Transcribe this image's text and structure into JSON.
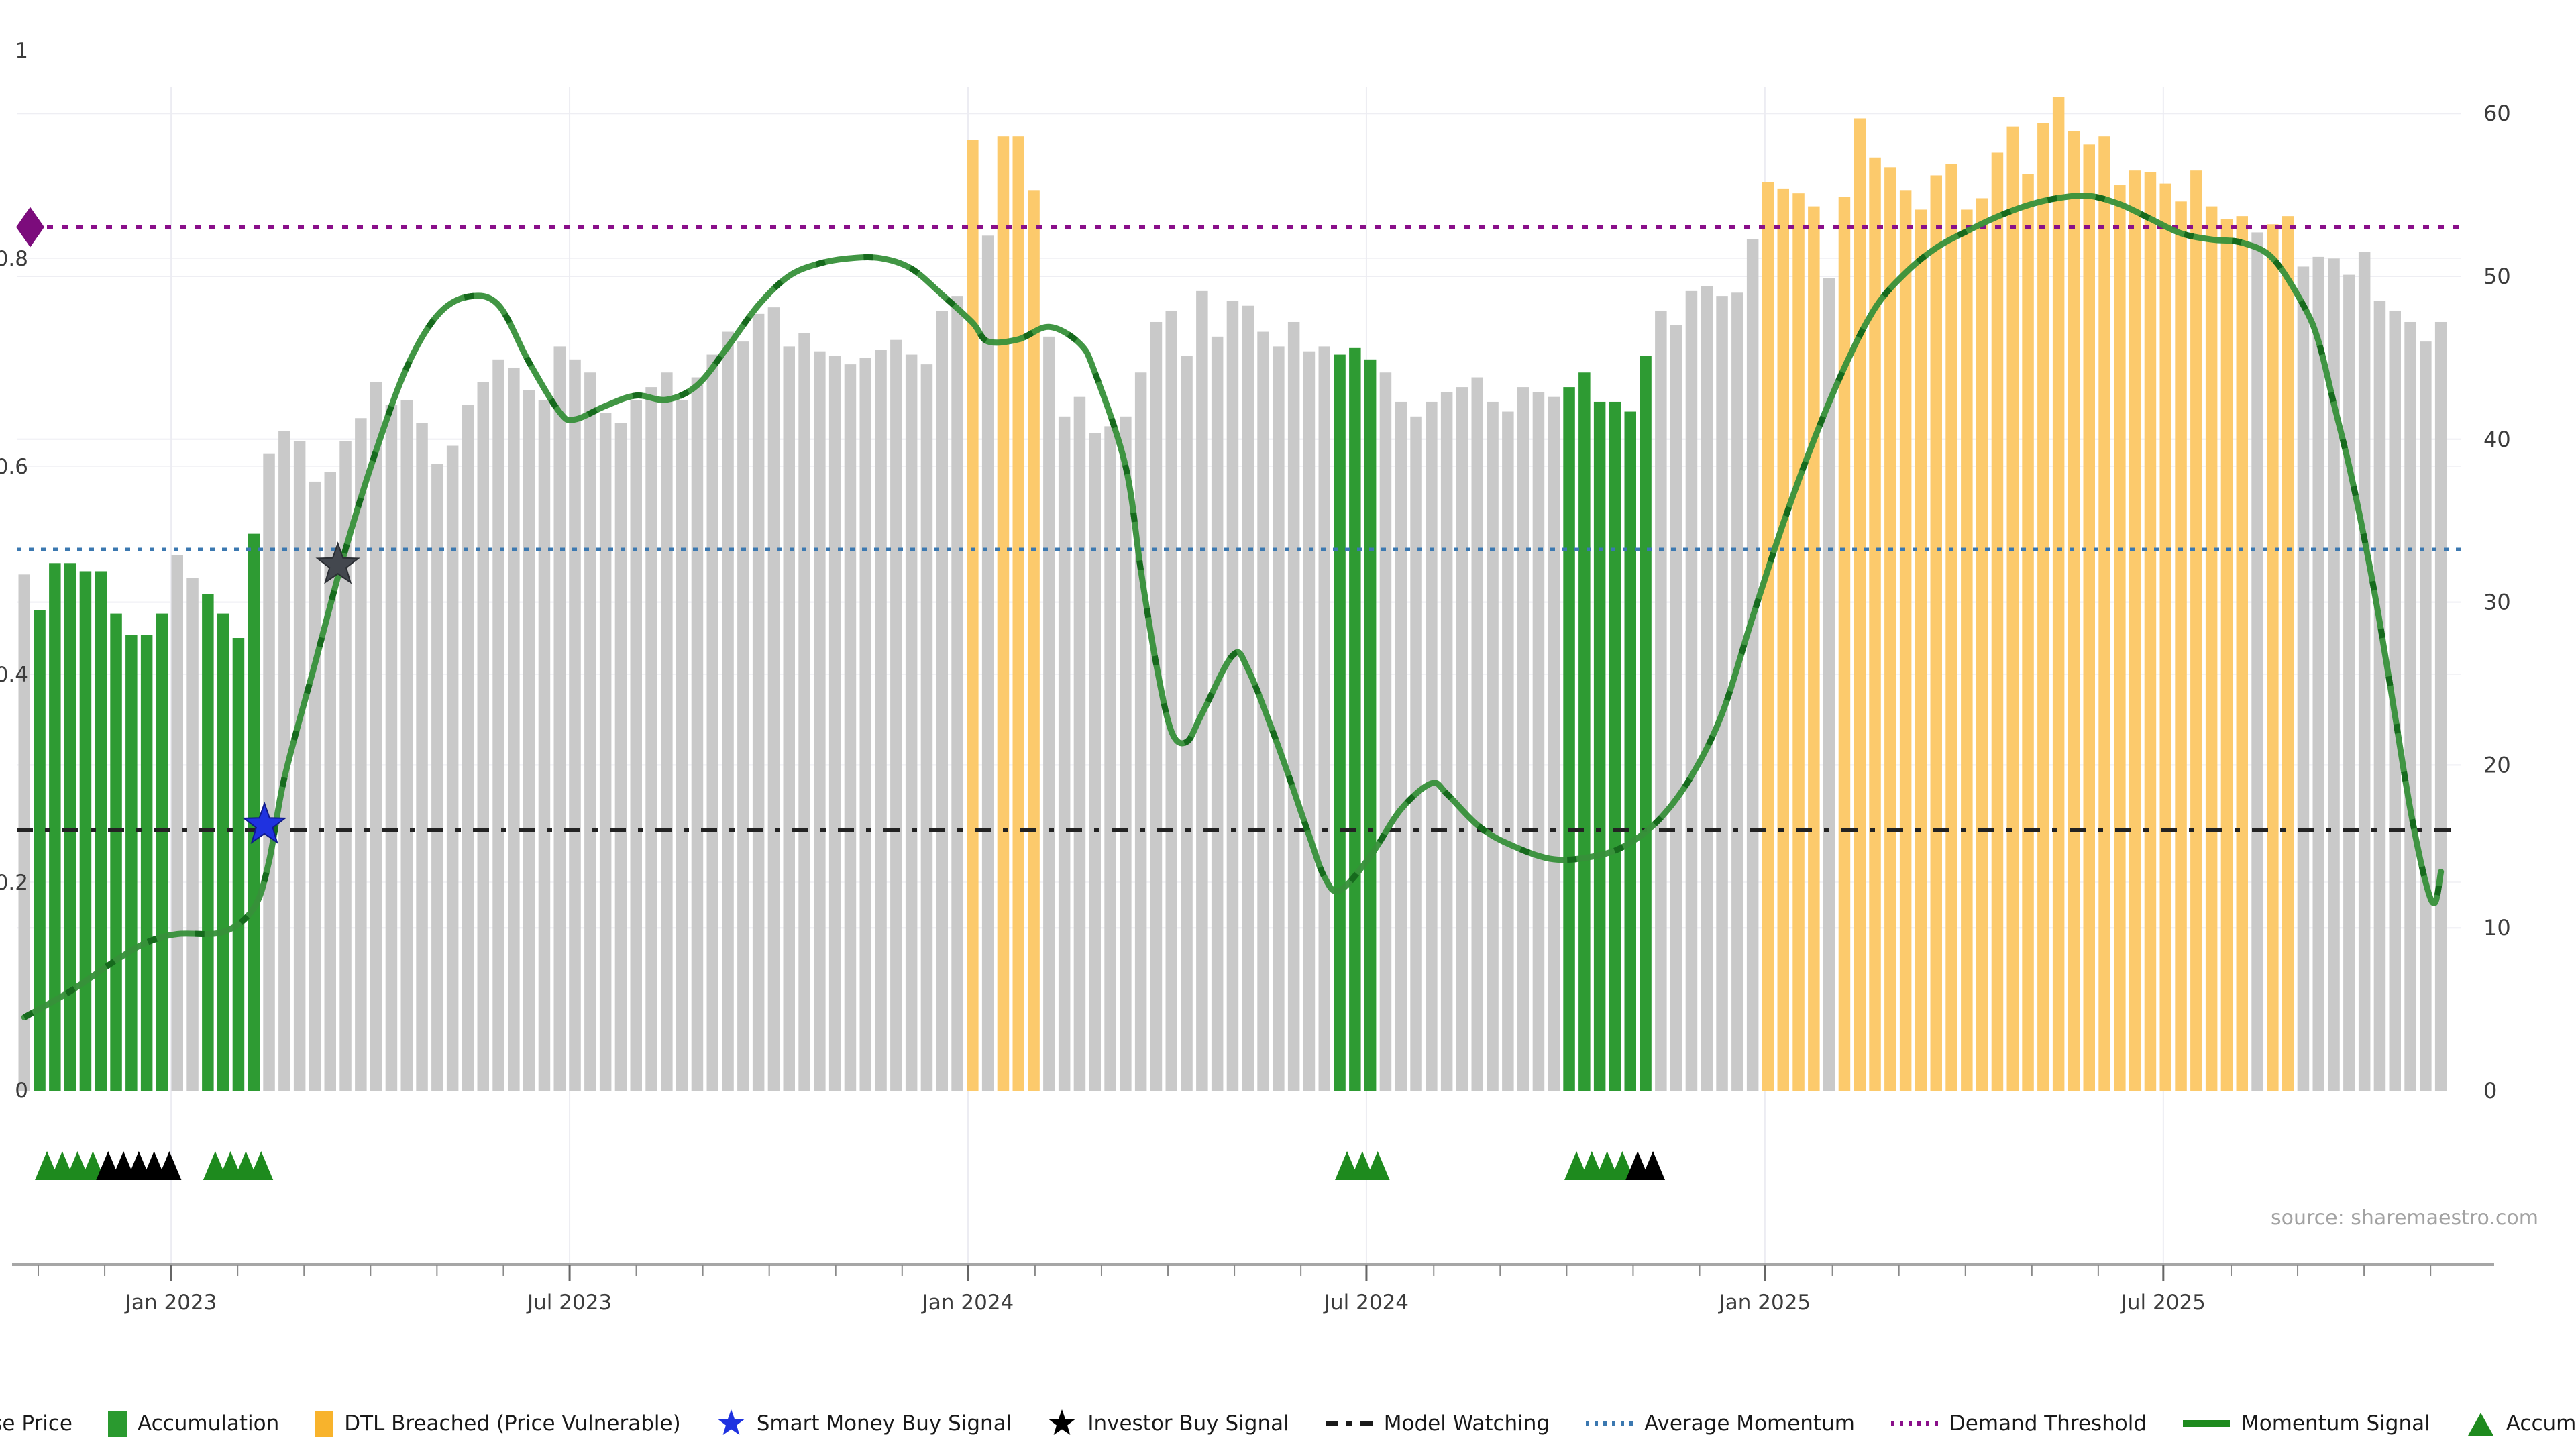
{
  "chart_data": {
    "type": "combo: weekly close-price bars (right axis) + momentum line and signal overlays (left axis)",
    "title": "",
    "source": "source: sharemaestro.com",
    "x_axis": {
      "tick_labels": [
        "Jan 2023",
        "Jul 2023",
        "Jan 2024",
        "Jul 2024",
        "Jan 2025",
        "Jul 2025"
      ],
      "minor_tick_unit": "month"
    },
    "left_axis": {
      "range": [
        0,
        1
      ],
      "tick_labels": [
        "0",
        "0.2",
        "0.4",
        "0.6",
        "0.8",
        "1"
      ],
      "tick_values": [
        0,
        0.2,
        0.4,
        0.6,
        0.8,
        1
      ]
    },
    "right_axis": {
      "range": [
        0,
        60
      ],
      "tick_labels": [
        "0",
        "10",
        "20",
        "30",
        "40",
        "50",
        "60"
      ],
      "tick_values": [
        0,
        10,
        20,
        30,
        40,
        50,
        60
      ]
    },
    "close_price_bars": {
      "axis": "right",
      "status_legend": {
        "p": "close price (grey)",
        "a": "accumulation (green)",
        "d": "DTL breached / price vulnerable (orange)"
      },
      "status": "paaaaaaaaappaaaappppppppppppppppppppppppppppppppppppppppppppppdpdddpppppppppppppppppppaaappppppppppppaaaaaapppppppddddpdddddddddddddddddddddddddddpddpppppppppp",
      "values": [
        31.7,
        29.5,
        32.4,
        32.4,
        31.9,
        31.9,
        29.3,
        28.0,
        28.0,
        29.3,
        32.9,
        31.5,
        30.5,
        29.3,
        27.8,
        34.2,
        39.1,
        40.5,
        39.9,
        37.4,
        38.0,
        39.9,
        41.3,
        43.5,
        42.1,
        42.4,
        41.0,
        38.5,
        39.6,
        42.1,
        43.5,
        44.9,
        44.4,
        43.0,
        42.4,
        45.7,
        44.9,
        44.1,
        41.6,
        41.0,
        42.4,
        43.2,
        44.1,
        42.4,
        43.8,
        45.2,
        46.6,
        46.0,
        47.7,
        48.1,
        45.7,
        46.5,
        45.4,
        45.1,
        44.6,
        45.0,
        45.5,
        46.1,
        45.2,
        44.6,
        47.9,
        48.8,
        58.4,
        52.5,
        58.6,
        58.6,
        55.3,
        46.3,
        41.4,
        42.6,
        40.4,
        40.8,
        41.4,
        44.1,
        47.2,
        47.9,
        45.1,
        49.1,
        46.3,
        48.5,
        48.2,
        46.6,
        45.7,
        47.2,
        45.4,
        45.7,
        45.2,
        45.6,
        44.9,
        44.1,
        42.3,
        41.4,
        42.3,
        42.9,
        43.2,
        43.8,
        42.3,
        41.7,
        43.2,
        42.9,
        42.6,
        43.2,
        44.1,
        42.3,
        42.3,
        41.7,
        45.1,
        47.9,
        47.0,
        49.1,
        49.4,
        48.8,
        49.0,
        52.3,
        55.8,
        55.4,
        55.1,
        54.3,
        49.9,
        54.9,
        59.7,
        57.3,
        56.7,
        55.3,
        54.1,
        56.2,
        56.9,
        54.1,
        54.8,
        57.6,
        59.2,
        56.3,
        59.4,
        61.0,
        58.9,
        58.1,
        58.6,
        55.6,
        56.5,
        56.4,
        55.7,
        54.6,
        56.5,
        54.3,
        53.5,
        53.7,
        52.7,
        53.2,
        53.7,
        50.6,
        51.2,
        51.1,
        50.1,
        51.5,
        48.5,
        47.9,
        47.2,
        46.0,
        47.2
      ]
    },
    "momentum_signal": {
      "axis": "left",
      "points": [
        [
          0,
          0.07
        ],
        [
          3,
          0.095
        ],
        [
          6,
          0.125
        ],
        [
          8,
          0.142
        ],
        [
          10,
          0.15
        ],
        [
          13,
          0.152
        ],
        [
          15,
          0.175
        ],
        [
          16,
          0.22
        ],
        [
          17,
          0.3
        ],
        [
          19,
          0.41
        ],
        [
          21,
          0.52
        ],
        [
          23,
          0.615
        ],
        [
          25,
          0.695
        ],
        [
          27,
          0.745
        ],
        [
          29,
          0.763
        ],
        [
          31,
          0.755
        ],
        [
          33,
          0.7
        ],
        [
          35,
          0.652
        ],
        [
          36,
          0.645
        ],
        [
          38,
          0.658
        ],
        [
          40,
          0.668
        ],
        [
          42,
          0.664
        ],
        [
          44,
          0.678
        ],
        [
          46,
          0.715
        ],
        [
          48,
          0.755
        ],
        [
          50,
          0.783
        ],
        [
          52,
          0.795
        ],
        [
          54,
          0.8
        ],
        [
          56,
          0.8
        ],
        [
          58,
          0.79
        ],
        [
          60,
          0.765
        ],
        [
          62,
          0.738
        ],
        [
          63,
          0.72
        ],
        [
          65,
          0.722
        ],
        [
          67,
          0.734
        ],
        [
          69,
          0.718
        ],
        [
          70,
          0.69
        ],
        [
          72,
          0.6
        ],
        [
          73,
          0.5
        ],
        [
          74,
          0.41
        ],
        [
          75,
          0.345
        ],
        [
          76,
          0.335
        ],
        [
          77,
          0.362
        ],
        [
          79,
          0.418
        ],
        [
          80,
          0.405
        ],
        [
          82,
          0.33
        ],
        [
          84,
          0.245
        ],
        [
          85,
          0.205
        ],
        [
          86,
          0.192
        ],
        [
          88,
          0.225
        ],
        [
          90,
          0.27
        ],
        [
          92,
          0.295
        ],
        [
          93,
          0.285
        ],
        [
          95,
          0.255
        ],
        [
          97,
          0.237
        ],
        [
          100,
          0.222
        ],
        [
          103,
          0.226
        ],
        [
          105,
          0.238
        ],
        [
          107,
          0.262
        ],
        [
          109,
          0.302
        ],
        [
          111,
          0.362
        ],
        [
          113,
          0.455
        ],
        [
          115,
          0.545
        ],
        [
          117,
          0.625
        ],
        [
          119,
          0.695
        ],
        [
          121,
          0.752
        ],
        [
          123,
          0.786
        ],
        [
          125,
          0.81
        ],
        [
          127,
          0.826
        ],
        [
          129,
          0.84
        ],
        [
          131,
          0.851
        ],
        [
          133,
          0.858
        ],
        [
          135,
          0.86
        ],
        [
          137,
          0.852
        ],
        [
          139,
          0.838
        ],
        [
          141,
          0.824
        ],
        [
          143,
          0.818
        ],
        [
          145,
          0.815
        ],
        [
          147,
          0.8
        ],
        [
          149,
          0.755
        ],
        [
          150,
          0.72
        ],
        [
          151,
          0.66
        ],
        [
          152,
          0.6
        ],
        [
          153,
          0.53
        ],
        [
          154,
          0.45
        ],
        [
          155,
          0.36
        ],
        [
          156,
          0.27
        ],
        [
          157,
          0.2
        ],
        [
          157.6,
          0.18
        ],
        [
          158,
          0.21
        ]
      ]
    },
    "reference_lines": {
      "demand_threshold": 0.83,
      "average_momentum": 0.52,
      "model_watching": 0.25
    },
    "signals": {
      "smart_money_buy": {
        "bar": 15.7,
        "value": 0.255
      },
      "investor_buy": {
        "bar": 20.5,
        "value": 0.505
      }
    },
    "accumulation_markers": {
      "green_bars": [
        1,
        2,
        3,
        4,
        12,
        13,
        14,
        15,
        86,
        87,
        88,
        101,
        102,
        103,
        104
      ],
      "black_bars": [
        5,
        6,
        7,
        8,
        9,
        105,
        106
      ]
    },
    "legend": [
      {
        "label": "Close Price",
        "type": "square",
        "color": "#bfbfbf"
      },
      {
        "label": "Accumulation",
        "type": "square",
        "color": "#2a9a2f"
      },
      {
        "label": "DTL Breached (Price Vulnerable)",
        "type": "square",
        "color": "#f8b32c"
      },
      {
        "label": "Smart Money Buy Signal",
        "type": "star",
        "color": "#1f32e0"
      },
      {
        "label": "Investor Buy Signal",
        "type": "star",
        "color": "#000000"
      },
      {
        "label": "Model Watching",
        "type": "dash-line",
        "color": "#1a1a1a"
      },
      {
        "label": "Average Momentum",
        "type": "dot-line",
        "color": "#3b78b0"
      },
      {
        "label": "Demand Threshold",
        "type": "dot-line",
        "color": "#8a0f8a"
      },
      {
        "label": "Momentum Signal",
        "type": "solid-line",
        "color": "#1e8a1e"
      },
      {
        "label": "Accumulation",
        "type": "triangle",
        "color": "#1e8a1e"
      }
    ],
    "colors": {
      "close_price_bar": "#c9c9c9",
      "accumulation_bar": "#2e9b33",
      "dtl_breached_bar": "#fcca6c",
      "momentum_line": "#37903a",
      "momentum_line_dash": "#166a1d",
      "demand_threshold_line": "#8a0f8a",
      "average_momentum_line": "#3b78b0",
      "model_watching_line": "#222222",
      "smart_money_star": "#1f32e0",
      "investor_star": "#43474e",
      "grid": "#eeeef3",
      "axis_line": "#a6a6a6",
      "axis_text": "#3c3c3c",
      "source_text": "#a2a2a2"
    }
  }
}
